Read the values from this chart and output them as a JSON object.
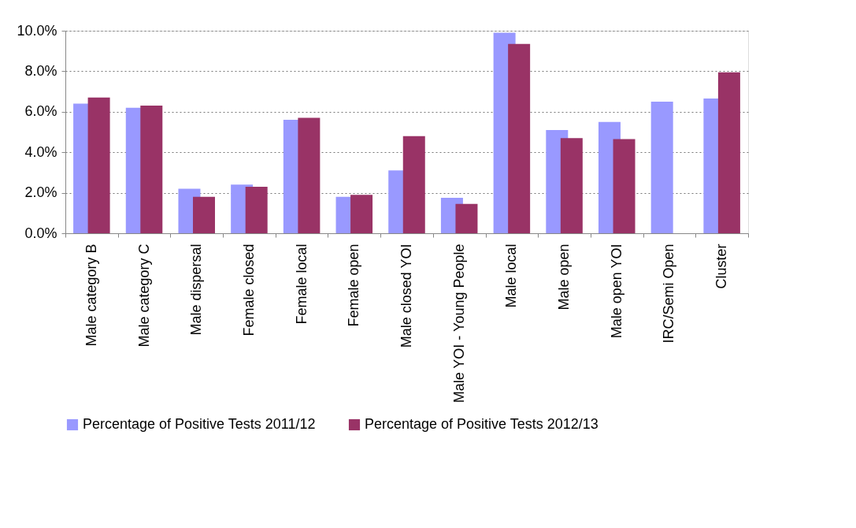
{
  "chart_data": {
    "type": "bar",
    "categories": [
      "Male category B",
      "Male category C",
      "Male dispersal",
      "Female closed",
      "Female local",
      "Female open",
      "Male closed YOI",
      "Male YOI - Young People",
      "Male local",
      "Male open",
      "Male open YOI",
      "IRC/Semi Open",
      "Cluster"
    ],
    "series": [
      {
        "name": "Percentage of Positive Tests 2011/12",
        "color": "#9999ff",
        "values": [
          6.4,
          6.2,
          2.2,
          2.4,
          5.6,
          1.8,
          3.1,
          1.75,
          9.9,
          5.1,
          5.5,
          6.5,
          6.65
        ]
      },
      {
        "name": "Percentage of Positive Tests 2012/13",
        "color": "#993366",
        "values": [
          6.7,
          6.3,
          1.8,
          2.3,
          5.7,
          1.9,
          4.8,
          1.45,
          9.35,
          4.7,
          4.65,
          null,
          7.95
        ]
      }
    ],
    "ylim": [
      0,
      10
    ],
    "yticks": [
      {
        "value": 0,
        "label": "0.0%"
      },
      {
        "value": 2,
        "label": "2.0%"
      },
      {
        "value": 4,
        "label": "4.0%"
      },
      {
        "value": 6,
        "label": "6.0%"
      },
      {
        "value": 8,
        "label": "8.0%"
      },
      {
        "value": 10,
        "label": "10.0%"
      }
    ],
    "grid": "y",
    "legend": "bottom"
  }
}
